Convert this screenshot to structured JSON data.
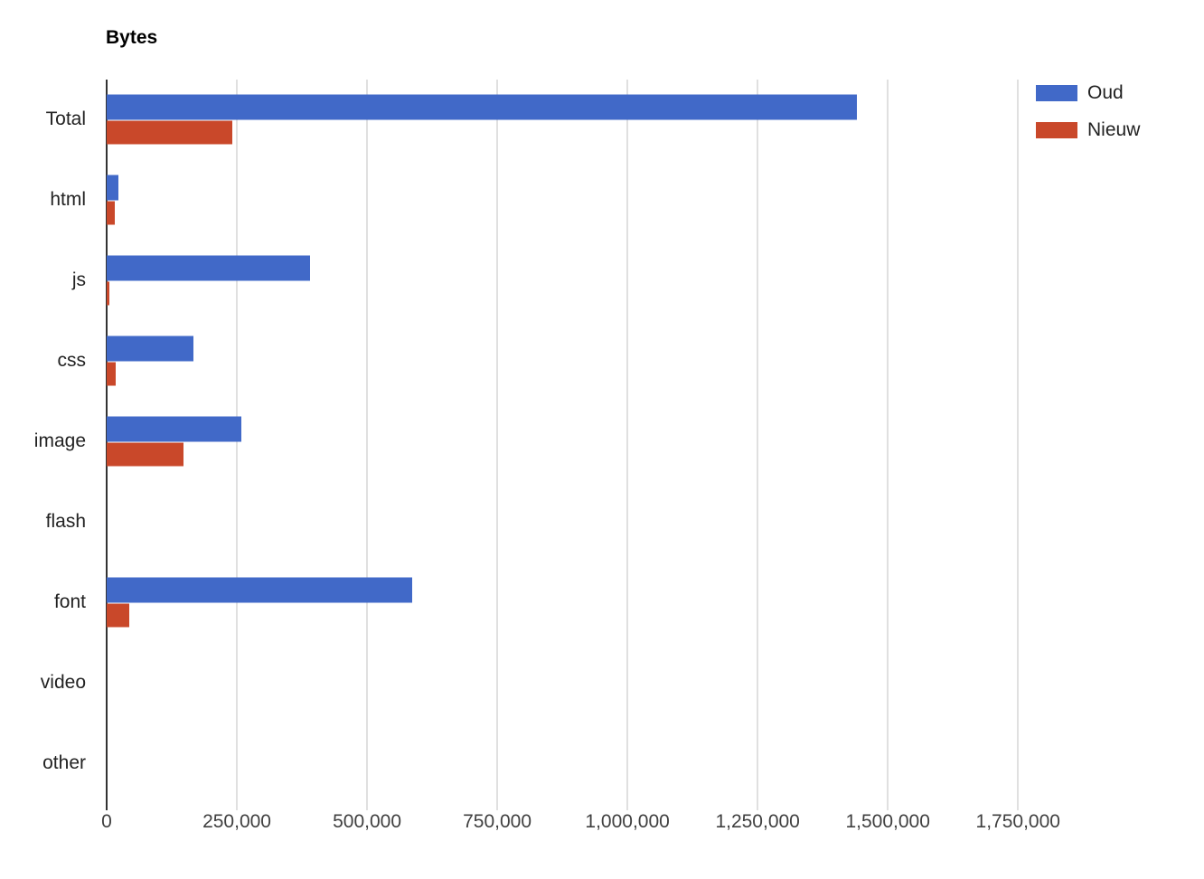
{
  "title": "Bytes",
  "chart_data": {
    "type": "bar",
    "orientation": "horizontal",
    "title": "Bytes",
    "categories": [
      "Total",
      "html",
      "js",
      "css",
      "image",
      "flash",
      "font",
      "video",
      "other"
    ],
    "series": [
      {
        "name": "Oud",
        "color": "#4169c8",
        "values": [
          1440000,
          22000,
          390000,
          167000,
          258000,
          0,
          587000,
          0,
          0
        ]
      },
      {
        "name": "Nieuw",
        "color": "#c9482a",
        "values": [
          241000,
          15000,
          6000,
          18000,
          147000,
          0,
          44000,
          0,
          0
        ]
      }
    ],
    "x_axis": {
      "tick_labels": [
        "0",
        "250,000",
        "500,000",
        "750,000",
        "1,000,000",
        "1,250,000",
        "1,500,000",
        "1,750,000"
      ],
      "tick_values": [
        0,
        250000,
        500000,
        750000,
        1000000,
        1250000,
        1500000,
        1750000
      ],
      "max": 1760000
    },
    "ylabel": "",
    "xlabel": "",
    "grid": true,
    "legend_position": "top-right",
    "colors": {
      "axis_line": "#333333",
      "gridline": "#e0e0e0",
      "label_text": "#222222",
      "tick_text": "#404040",
      "background": "#ffffff"
    }
  }
}
